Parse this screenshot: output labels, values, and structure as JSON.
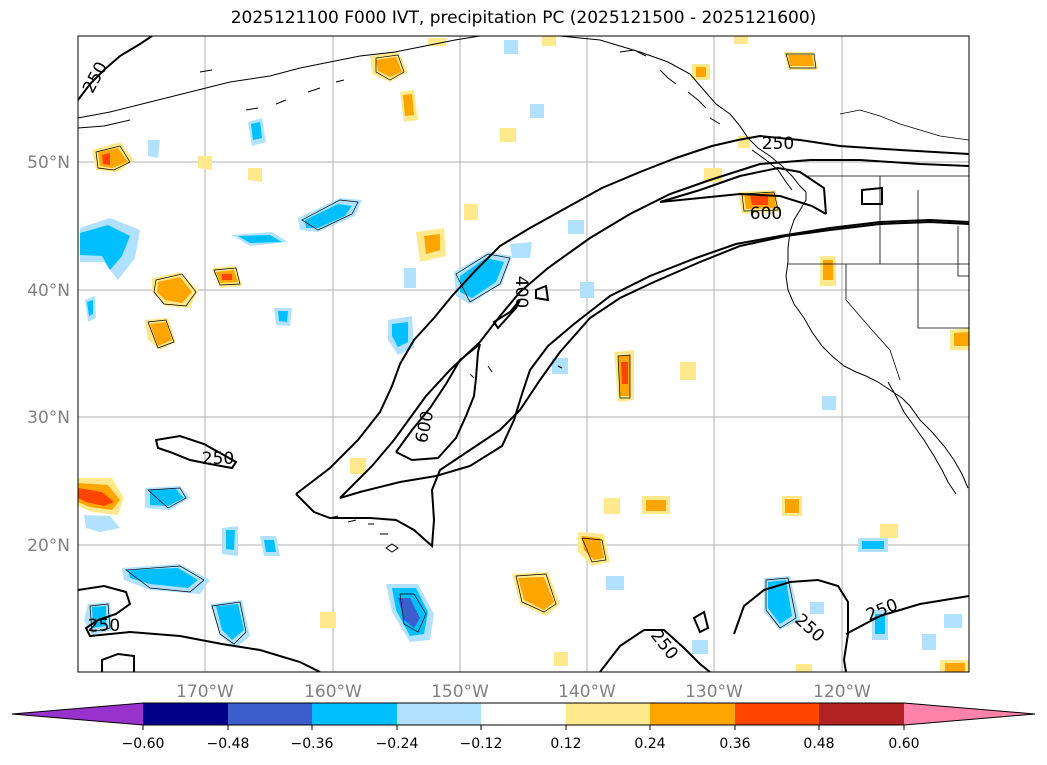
{
  "title": "2025121100 F000 IVT, precipitation PC (2025121500 - 2025121600)",
  "axes": {
    "lat_labels": [
      "50°N",
      "40°N",
      "30°N",
      "20°N"
    ],
    "lon_labels": [
      "170°W",
      "160°W",
      "150°W",
      "140°W",
      "130°W",
      "120°W"
    ]
  },
  "contour_labels": [
    "250",
    "250",
    "600",
    "400",
    "600",
    "250",
    "250",
    "250",
    "250",
    "250"
  ],
  "colorbar": {
    "colors": [
      "#9932cc",
      "#00008b",
      "#3a5fcd",
      "#00bfff",
      "#b0e2ff",
      "#ffffff",
      "#ffe98c",
      "#ffa500",
      "#ff4500",
      "#b22222",
      "#ff82ab"
    ],
    "tick_labels": [
      "−0.60",
      "−0.48",
      "−0.36",
      "−0.24",
      "−0.12",
      "0.12",
      "0.24",
      "0.36",
      "0.48",
      "0.60"
    ]
  }
}
